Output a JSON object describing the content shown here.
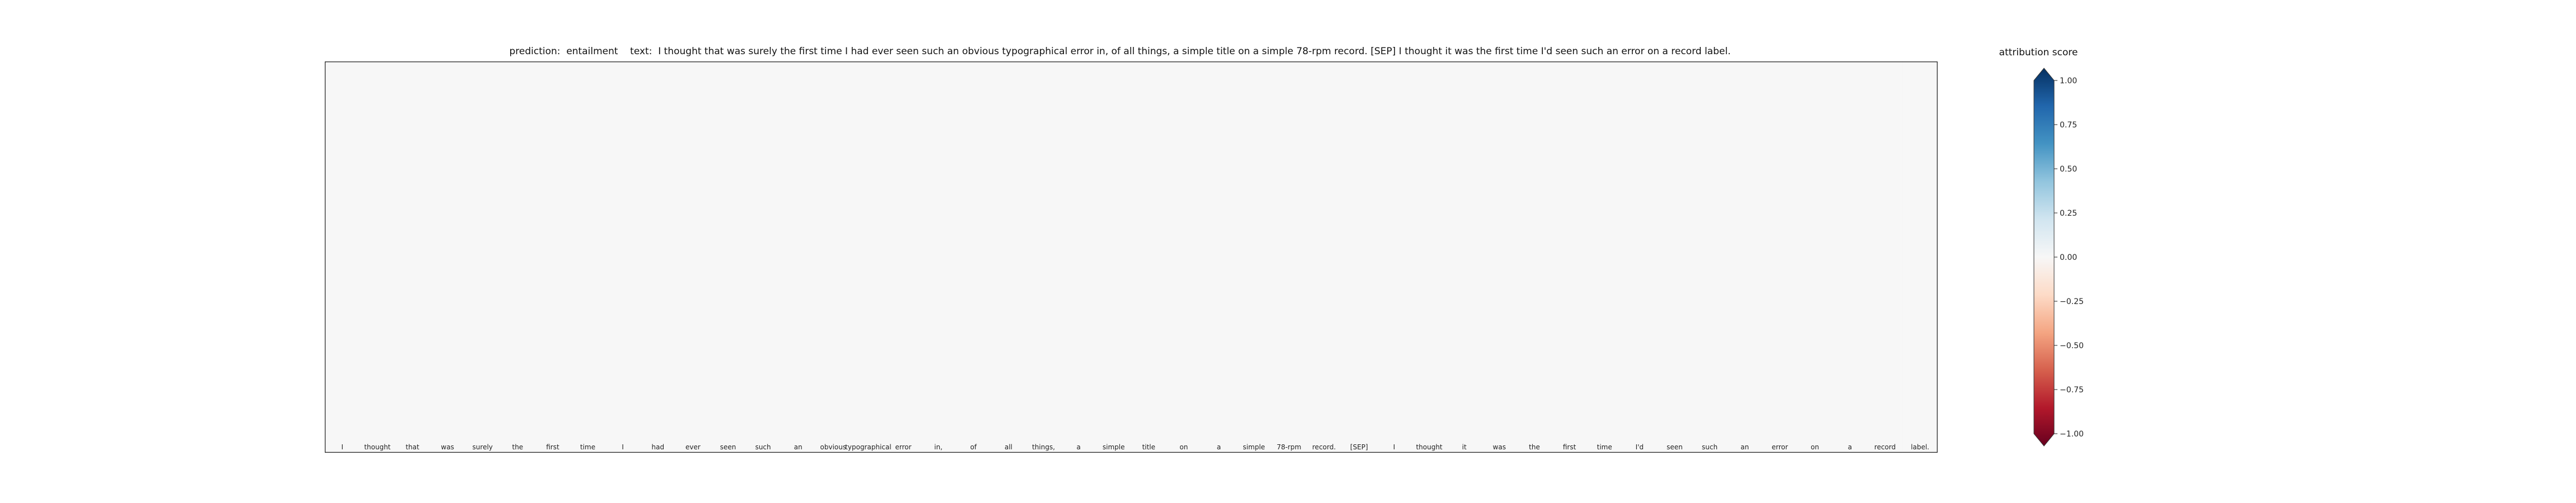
{
  "chart_data": {
    "type": "heatmap",
    "title": "prediction:  entailment    text:  I thought that was surely the first time I had ever seen such an obvious typographical error in, of all things, a simple title on a simple 78-rpm record. [SEP] I thought it was the first time I'd seen such an error on a record label.",
    "colorbar_label": "attribution score",
    "colorbar_ticks": [
      "1.00",
      "0.75",
      "0.50",
      "0.25",
      "0.00",
      "−0.25",
      "−0.50",
      "−0.75",
      "−1.00"
    ],
    "color_scale": {
      "range": [
        -1,
        1
      ],
      "stops": [
        "#67001f",
        "#b2182b",
        "#d6604d",
        "#f4a582",
        "#fddbc7",
        "#f7f7f7",
        "#d1e5f0",
        "#92c5de",
        "#4393c3",
        "#2166ac",
        "#053061"
      ]
    },
    "tokens": [
      "I",
      "thought",
      "that",
      "was",
      "surely",
      "the",
      "first",
      "time",
      "I",
      "had",
      "ever",
      "seen",
      "such",
      "an",
      "obvious",
      "typographical",
      "error",
      "in,",
      "of",
      "all",
      "things,",
      "a",
      "simple",
      "title",
      "on",
      "a",
      "simple",
      "78-rpm",
      "record.",
      "[SEP]",
      "I",
      "thought",
      "it",
      "was",
      "the",
      "first",
      "time",
      "I'd",
      "seen",
      "such",
      "an",
      "error",
      "on",
      "a",
      "record",
      "label."
    ],
    "rows": [
      [
        0,
        0,
        0,
        0,
        0,
        0,
        0,
        0,
        0,
        0,
        0,
        0,
        0,
        0,
        0,
        0,
        0,
        0,
        0,
        0,
        0,
        0,
        0,
        0,
        0,
        0,
        0,
        0,
        0,
        0,
        0,
        0,
        0,
        0,
        0,
        0,
        0,
        0,
        0,
        0,
        0,
        0,
        0,
        0,
        0,
        0
      ],
      [
        0,
        0,
        0,
        0,
        0,
        0,
        0,
        0,
        0,
        0,
        0,
        0,
        0,
        0,
        0,
        0,
        0,
        0,
        0,
        0,
        0,
        0,
        0,
        0,
        0,
        0,
        0,
        0,
        0,
        0,
        0,
        0,
        0,
        0,
        0,
        0,
        0,
        0,
        0,
        0,
        0,
        0,
        0,
        0,
        0,
        0
      ],
      [
        0,
        0,
        0,
        0,
        0,
        0,
        0,
        0,
        0,
        0,
        0,
        0,
        0,
        0,
        0,
        0,
        0,
        0,
        0,
        0,
        0,
        0,
        0,
        0,
        0,
        0,
        0,
        0,
        0,
        0,
        0,
        0,
        0,
        0,
        0,
        0,
        0,
        0,
        0,
        0,
        0,
        0,
        0,
        0,
        0,
        0
      ]
    ]
  }
}
